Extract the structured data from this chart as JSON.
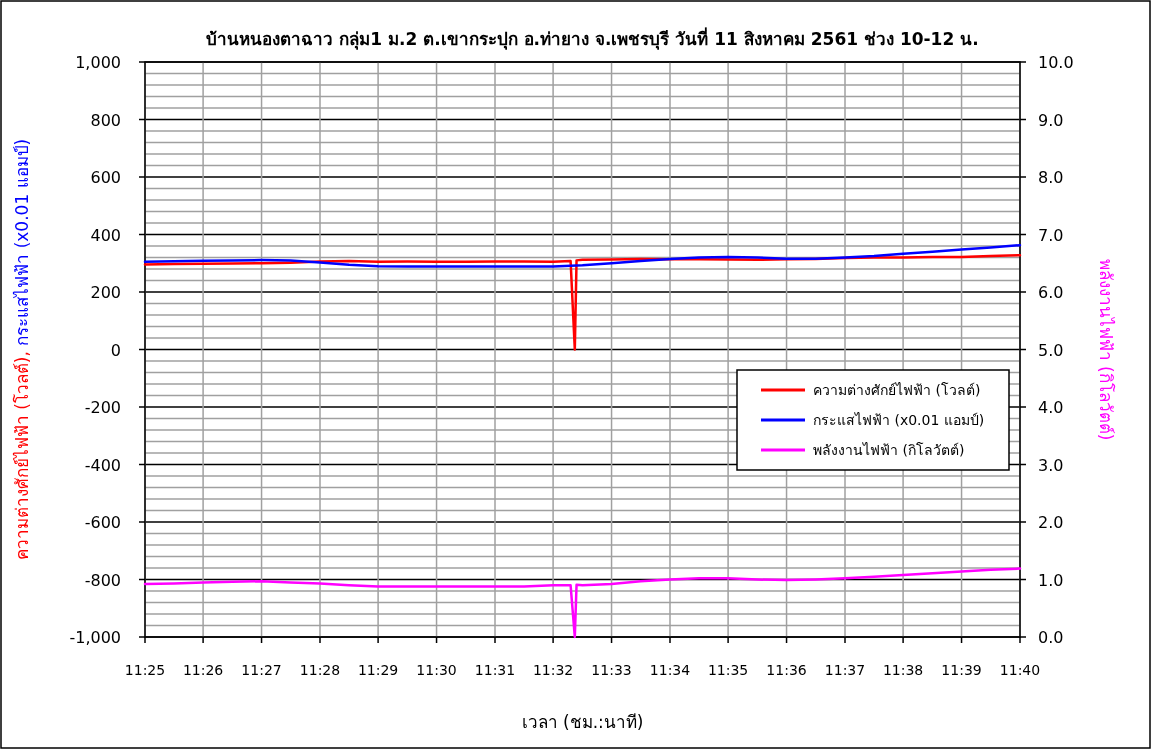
{
  "chart_data": {
    "type": "line",
    "title": "บ้านหนองตาฉาว กลุ่ม1 ม.2 ต.เขากระปุก อ.ท่ายาง จ.เพชรบุรี วันที่ 11 สิงหาคม 2561 ช่วง 10-12 น.",
    "xlabel": "เวลา (ชม.:นาที)",
    "ylabel": "ความต่างศักย์ไฟฟ้า (โวลต์), กระแสไฟฟ้า (x0.01 แอมป์)",
    "y2label": "พลังงานไฟฟ้า (กิโลวัตต์)",
    "xlim": [
      11.4167,
      11.6667
    ],
    "xticks": [
      {
        "value": 11.4167,
        "label": "11:25"
      },
      {
        "value": 11.4333,
        "label": "11:26"
      },
      {
        "value": 11.45,
        "label": "11:27"
      },
      {
        "value": 11.4667,
        "label": "11:28"
      },
      {
        "value": 11.4833,
        "label": "11:29"
      },
      {
        "value": 11.5,
        "label": "11:30"
      },
      {
        "value": 11.5167,
        "label": "11:31"
      },
      {
        "value": 11.5333,
        "label": "11:32"
      },
      {
        "value": 11.55,
        "label": "11:33"
      },
      {
        "value": 11.5667,
        "label": "11:34"
      },
      {
        "value": 11.5833,
        "label": "11:35"
      },
      {
        "value": 11.6,
        "label": "11:36"
      },
      {
        "value": 11.6167,
        "label": "11:37"
      },
      {
        "value": 11.6333,
        "label": "11:38"
      },
      {
        "value": 11.65,
        "label": "11:39"
      },
      {
        "value": 11.6667,
        "label": "11:40"
      }
    ],
    "ylim": [
      -1000,
      1000
    ],
    "yticks": [
      {
        "value": -1000,
        "label": "-1,000"
      },
      {
        "value": -960,
        "label": null
      },
      {
        "value": -920,
        "label": null
      },
      {
        "value": -880,
        "label": null
      },
      {
        "value": -840,
        "label": null
      },
      -800,
      {
        "value": -760,
        "label": null
      },
      {
        "value": -720,
        "label": null
      },
      {
        "value": -680,
        "label": null
      },
      {
        "value": -640,
        "label": null
      },
      -600,
      {
        "value": -560,
        "label": null
      },
      {
        "value": -520,
        "label": null
      },
      {
        "value": -480,
        "label": null
      },
      {
        "value": -440,
        "label": null
      },
      -400,
      {
        "value": -360,
        "label": null
      },
      {
        "value": -320,
        "label": null
      },
      {
        "value": -280,
        "label": null
      },
      {
        "value": -240,
        "label": null
      },
      -200,
      {
        "value": -160,
        "label": null
      },
      {
        "value": -120,
        "label": null
      },
      {
        "value": -80,
        "label": null
      },
      {
        "value": -40,
        "label": null
      },
      0,
      {
        "value": 40,
        "label": null
      },
      {
        "value": 80,
        "label": null
      },
      {
        "value": 120,
        "label": null
      },
      {
        "value": 160,
        "label": null
      },
      200,
      {
        "value": 240,
        "label": null
      },
      {
        "value": 280,
        "label": null
      },
      {
        "value": 320,
        "label": null
      },
      {
        "value": 360,
        "label": null
      },
      400,
      {
        "value": 440,
        "label": null
      },
      {
        "value": 480,
        "label": null
      },
      {
        "value": 520,
        "label": null
      },
      {
        "value": 560,
        "label": null
      },
      600,
      {
        "value": 640,
        "label": null
      },
      {
        "value": 680,
        "label": null
      },
      {
        "value": 720,
        "label": null
      },
      {
        "value": 760,
        "label": null
      },
      800,
      {
        "value": 840,
        "label": null
      },
      {
        "value": 880,
        "label": null
      },
      {
        "value": 920,
        "label": null
      },
      {
        "value": 960,
        "label": null
      },
      {
        "value": 1000,
        "label": "1,000"
      }
    ],
    "y2lim": [
      0,
      10
    ],
    "y2ticks": [
      {
        "value": 0,
        "label": "0.0"
      },
      {
        "value": 1,
        "label": "1.0"
      },
      {
        "value": 2,
        "label": "2.0"
      },
      {
        "value": 3,
        "label": "3.0"
      },
      {
        "value": 4,
        "label": "4.0"
      },
      {
        "value": 5,
        "label": "5.0"
      },
      {
        "value": 6,
        "label": "6.0"
      },
      {
        "value": 7,
        "label": "7.0"
      },
      {
        "value": 8,
        "label": "8.0"
      },
      {
        "value": 9,
        "label": "9.0"
      },
      {
        "value": 10,
        "label": "10.0"
      }
    ],
    "grid": true,
    "legend": "right",
    "line_style": "solid",
    "marker": "none",
    "series": [
      {
        "name": "ความต่างศักย์ไฟฟ้า (โวลต์)",
        "color": "#ff0000",
        "x": [
          11.4167,
          11.425,
          11.4333,
          11.4417,
          11.45,
          11.4583,
          11.4667,
          11.475,
          11.4833,
          11.4917,
          11.5,
          11.5083,
          11.5167,
          11.525,
          11.5333,
          11.5383,
          11.5395,
          11.54,
          11.5417,
          11.55,
          11.5583,
          11.5667,
          11.575,
          11.5833,
          11.5917,
          11.6,
          11.6083,
          11.6167,
          11.625,
          11.6333,
          11.6417,
          11.65,
          11.6583,
          11.6667
        ],
        "values": [
          296,
          297,
          298,
          299,
          300,
          302,
          306,
          308,
          305,
          306,
          305,
          305,
          306,
          306,
          305,
          308,
          0,
          310,
          312,
          313,
          315,
          314,
          314,
          313,
          312,
          314,
          315,
          318,
          320,
          320,
          322,
          322,
          325,
          328
        ]
      },
      {
        "name": "กระแสไฟฟ้า (x0.01 แอมป์)",
        "color": "#0000ff",
        "x": [
          11.4167,
          11.425,
          11.4333,
          11.4417,
          11.45,
          11.4583,
          11.4667,
          11.475,
          11.4833,
          11.4917,
          11.5,
          11.5083,
          11.5167,
          11.525,
          11.5333,
          11.5417,
          11.55,
          11.5583,
          11.5667,
          11.575,
          11.5833,
          11.5917,
          11.6,
          11.6083,
          11.6167,
          11.625,
          11.6333,
          11.6417,
          11.65,
          11.6583,
          11.6667
        ],
        "values": [
          305,
          307,
          309,
          310,
          311,
          310,
          303,
          295,
          290,
          289,
          289,
          289,
          289,
          289,
          289,
          293,
          300,
          308,
          315,
          320,
          322,
          320,
          316,
          316,
          320,
          325,
          333,
          340,
          348,
          355,
          363
        ]
      },
      {
        "name": "พลังงานไฟฟ้า (กิโลวัตต์)",
        "color": "#ff00ff",
        "axis": "y2",
        "x": [
          11.4167,
          11.425,
          11.4333,
          11.4417,
          11.45,
          11.4583,
          11.4667,
          11.475,
          11.4833,
          11.4917,
          11.5,
          11.5083,
          11.5167,
          11.525,
          11.5333,
          11.5383,
          11.5395,
          11.54,
          11.5417,
          11.55,
          11.5583,
          11.5667,
          11.575,
          11.5833,
          11.5917,
          11.6,
          11.6083,
          11.6167,
          11.625,
          11.6333,
          11.6417,
          11.65,
          11.6583,
          11.6667
        ],
        "values": [
          0.92,
          0.93,
          0.95,
          0.96,
          0.97,
          0.95,
          0.93,
          0.9,
          0.88,
          0.88,
          0.88,
          0.88,
          0.88,
          0.88,
          0.9,
          0.9,
          0,
          0.91,
          0.9,
          0.92,
          0.97,
          1.0,
          1.02,
          1.02,
          1.0,
          0.99,
          1.0,
          1.02,
          1.05,
          1.08,
          1.11,
          1.14,
          1.17,
          1.19
        ]
      }
    ]
  }
}
